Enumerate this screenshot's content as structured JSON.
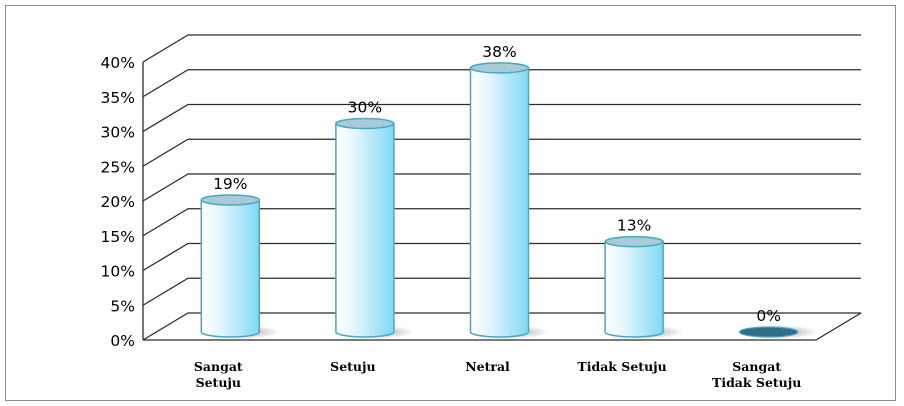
{
  "chart_data": {
    "type": "bar",
    "style": "3d-cylinder",
    "categories": [
      [
        "Sangat",
        "Setuju"
      ],
      [
        "Setuju"
      ],
      [
        "Netral"
      ],
      [
        "Tidak Setuju"
      ],
      [
        "Sangat",
        "Tidak Setuju"
      ]
    ],
    "values": [
      19,
      30,
      38,
      13,
      0
    ],
    "data_labels": [
      "19%",
      "30%",
      "38%",
      "13%",
      "0%"
    ],
    "y_ticks": [
      "0%",
      "5%",
      "10%",
      "15%",
      "20%",
      "25%",
      "30%",
      "35%",
      "40%"
    ],
    "ylim": [
      0,
      40
    ],
    "grid": true,
    "legend": "none",
    "colors": {
      "bar_light": "#ffffff",
      "bar_mid": "#dff5fc",
      "bar_dark": "#7fd8f3",
      "bar_edge": "#4aa6c4",
      "bar_top": "#a9cad8",
      "zero_disc": "#2f6f88",
      "shadow": "#8a8a8a",
      "grid": "#2b2b2b"
    }
  }
}
